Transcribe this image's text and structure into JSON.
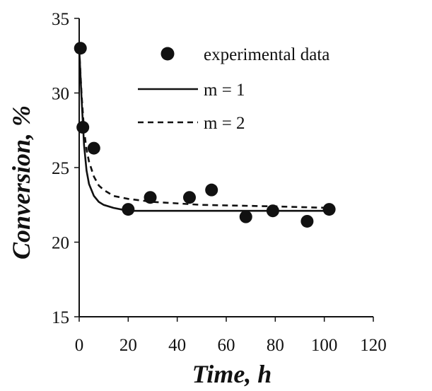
{
  "chart_data": {
    "type": "scatter",
    "xlabel": "Time, h",
    "ylabel": "Conversion, %",
    "xlim": [
      0,
      120
    ],
    "ylim": [
      15,
      35
    ],
    "xticks": [
      0,
      20,
      40,
      60,
      80,
      100,
      120
    ],
    "yticks": [
      15,
      20,
      25,
      30,
      35
    ],
    "grid": false,
    "legend_position": "top-right",
    "series": [
      {
        "name": "experimental data",
        "kind": "markers",
        "color": "#111111",
        "x": [
          0.5,
          1.5,
          6,
          20,
          29,
          45,
          54,
          68,
          79,
          93,
          102
        ],
        "y": [
          33.0,
          27.7,
          26.3,
          22.2,
          23.0,
          23.0,
          23.5,
          21.7,
          22.1,
          21.4,
          22.2
        ]
      },
      {
        "name": "m = 1",
        "kind": "line",
        "dash": "solid",
        "color": "#111111",
        "x": [
          0,
          1,
          2,
          3,
          4,
          6,
          8,
          10,
          14,
          20,
          30,
          50,
          80,
          102
        ],
        "y": [
          33.0,
          29.5,
          26.5,
          24.8,
          23.9,
          23.1,
          22.7,
          22.5,
          22.3,
          22.1,
          22.1,
          22.1,
          22.1,
          22.1
        ]
      },
      {
        "name": "m = 2",
        "kind": "line",
        "dash": "dashed",
        "color": "#111111",
        "x": [
          0,
          1,
          2,
          3,
          4,
          6,
          8,
          10,
          14,
          20,
          30,
          50,
          80,
          102
        ],
        "y": [
          33.0,
          29.8,
          27.5,
          26.2,
          25.4,
          24.4,
          23.8,
          23.5,
          23.1,
          22.9,
          22.7,
          22.5,
          22.4,
          22.3
        ]
      }
    ]
  }
}
